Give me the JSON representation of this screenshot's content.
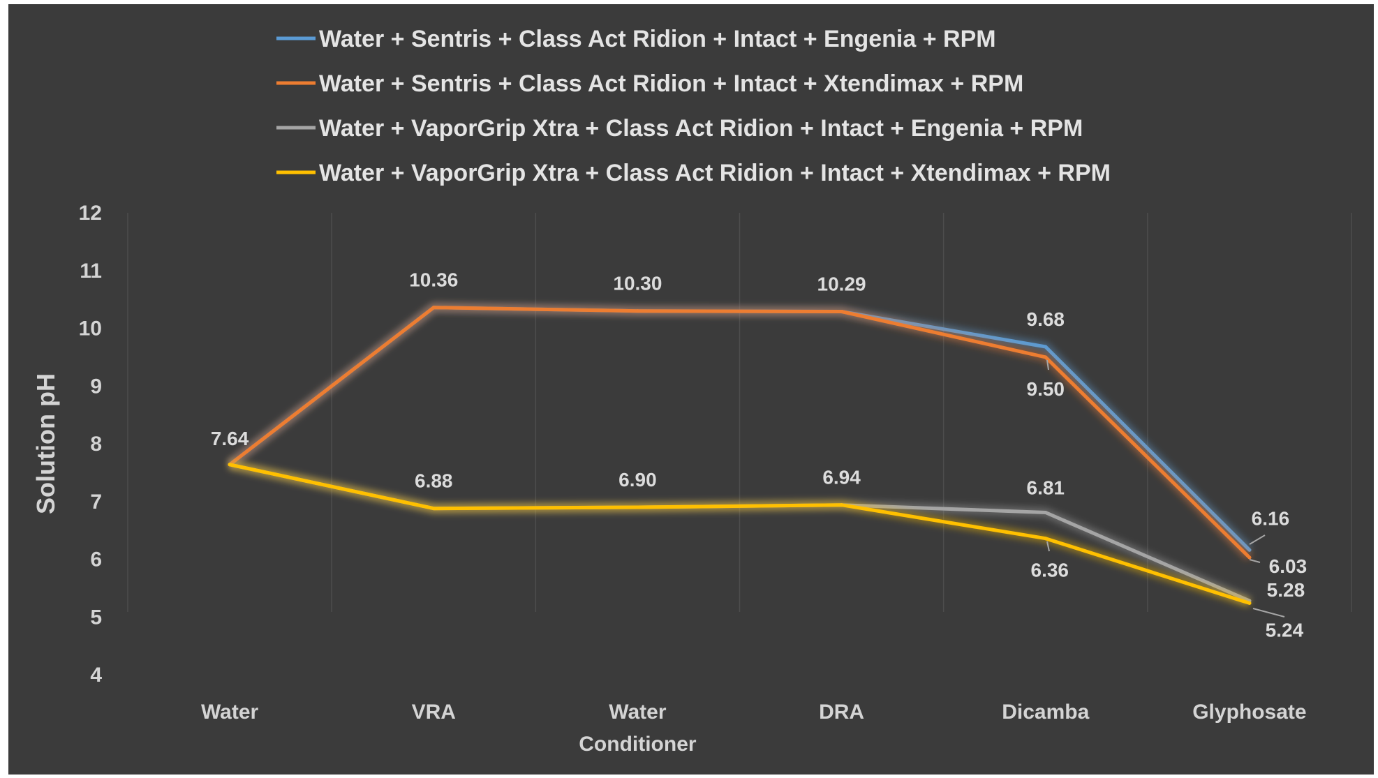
{
  "chart_data": {
    "type": "line",
    "title": "",
    "xlabel": "",
    "ylabel": "Solution pH",
    "ylim": [
      4,
      12
    ],
    "yticks": [
      4,
      5,
      6,
      7,
      8,
      9,
      10,
      11,
      12
    ],
    "grid": "vertical",
    "legend_position": "top",
    "background_color": "#3b3b3b",
    "categories": [
      [
        "Water"
      ],
      [
        "VRA"
      ],
      [
        "Water",
        "Conditioner"
      ],
      [
        "DRA"
      ],
      [
        "Dicamba"
      ],
      [
        "Glyphosate"
      ]
    ],
    "series": [
      {
        "name": "Water + Sentris + Class Act Ridion + Intact + Engenia + RPM",
        "color": "#5b9bd5",
        "values": [
          7.64,
          10.36,
          10.3,
          10.29,
          9.68,
          6.16
        ],
        "labels": [
          "",
          "",
          "",
          "",
          "9.68",
          "6.16"
        ]
      },
      {
        "name": "Water + Sentris + Class Act Ridion + Intact + Xtendimax + RPM",
        "color": "#ed7d31",
        "values": [
          7.64,
          10.36,
          10.3,
          10.29,
          9.5,
          6.03
        ],
        "labels": [
          "7.64",
          "10.36",
          "10.30",
          "10.29",
          "9.50",
          "6.03"
        ]
      },
      {
        "name": "Water + VaporGrip Xtra + Class Act Ridion + Intact + Engenia + RPM",
        "color": "#a5a5a5",
        "values": [
          7.64,
          6.88,
          6.9,
          6.94,
          6.81,
          5.28
        ],
        "labels": [
          "",
          "",
          "",
          "",
          "6.81",
          "5.28"
        ]
      },
      {
        "name": "Water + VaporGrip Xtra + Class Act Ridion + Intact + Xtendimax + RPM",
        "color": "#ffc000",
        "values": [
          7.64,
          6.88,
          6.9,
          6.94,
          6.36,
          5.24
        ],
        "labels": [
          "",
          "6.88",
          "6.90",
          "6.94",
          "6.36",
          "5.24"
        ]
      }
    ]
  }
}
